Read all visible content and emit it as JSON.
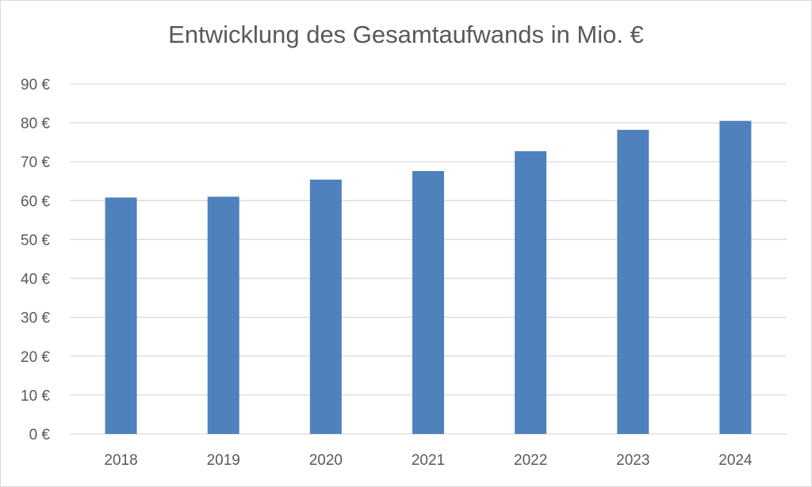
{
  "chart_data": {
    "type": "bar",
    "title": "Entwicklung des Gesamtaufwands in Mio. €",
    "xlabel": "",
    "ylabel": "",
    "categories": [
      "2018",
      "2019",
      "2020",
      "2021",
      "2022",
      "2023",
      "2024"
    ],
    "values": [
      60.8,
      61.0,
      65.4,
      67.6,
      72.7,
      78.2,
      80.5
    ],
    "ylim": [
      0,
      90
    ],
    "yticks": [
      0,
      10,
      20,
      30,
      40,
      50,
      60,
      70,
      80,
      90
    ],
    "ytick_labels": [
      "0 €",
      "10 €",
      "20 €",
      "30 €",
      "40 €",
      "50 €",
      "60 €",
      "70 €",
      "80 €",
      "90 €"
    ],
    "grid": true,
    "legend": "none",
    "colors": {
      "bar": "#4f81bd",
      "grid": "#d9d9d9",
      "text": "#595959"
    }
  }
}
